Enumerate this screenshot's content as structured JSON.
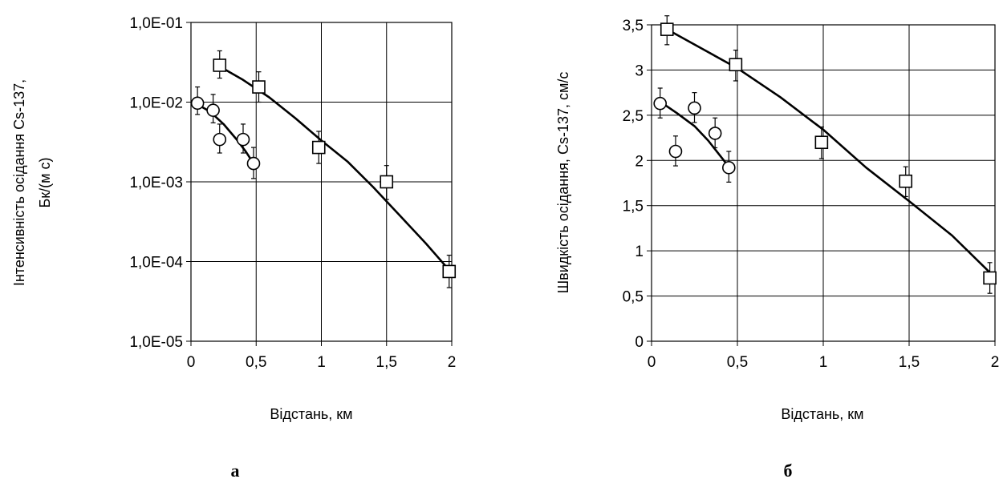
{
  "chart_data": [
    {
      "type": "scatter",
      "panel_label": "а",
      "xlabel": "Відстань, км",
      "ylabel_lines": [
        "Інтенсивність осідання Cs-137,",
        "Бк/(м с)"
      ],
      "yscale": "log",
      "xlim": [
        0,
        2
      ],
      "ylim": [
        1e-05,
        0.1
      ],
      "x_ticks": [
        0,
        0.5,
        1,
        1.5,
        2
      ],
      "x_tick_labels": [
        "0",
        "0,5",
        "1",
        "1,5",
        "2"
      ],
      "y_ticks": [
        1e-05,
        0.0001,
        0.001,
        0.01,
        0.1
      ],
      "y_tick_labels": [
        "1,0E-05",
        "1,0E-04",
        "1,0E-03",
        "1,0E-02",
        "1,0E-01"
      ],
      "grid": true,
      "series": [
        {
          "marker": "circle",
          "points": [
            {
              "x": 0.05,
              "y": 0.0097,
              "err": [
                0.007,
                0.0155
              ]
            },
            {
              "x": 0.17,
              "y": 0.0079,
              "err": [
                0.0055,
                0.0125
              ]
            },
            {
              "x": 0.22,
              "y": 0.0034,
              "err": [
                0.0023,
                0.0053
              ]
            },
            {
              "x": 0.4,
              "y": 0.0034,
              "err": [
                0.0023,
                0.0053
              ]
            },
            {
              "x": 0.48,
              "y": 0.0017,
              "err": [
                0.0011,
                0.0027
              ]
            }
          ],
          "fit": [
            {
              "x": 0.05,
              "y": 0.0094
            },
            {
              "x": 0.15,
              "y": 0.0075
            },
            {
              "x": 0.25,
              "y": 0.0053
            },
            {
              "x": 0.35,
              "y": 0.0034
            },
            {
              "x": 0.42,
              "y": 0.0024
            },
            {
              "x": 0.48,
              "y": 0.0017
            }
          ]
        },
        {
          "marker": "square",
          "points": [
            {
              "x": 0.22,
              "y": 0.029,
              "err": [
                0.02,
                0.044
              ]
            },
            {
              "x": 0.52,
              "y": 0.0155,
              "err": [
                0.01,
                0.024
              ]
            },
            {
              "x": 0.98,
              "y": 0.0027,
              "err": [
                0.0017,
                0.0043
              ]
            },
            {
              "x": 1.5,
              "y": 0.001,
              "err": [
                0.0006,
                0.0016
              ]
            },
            {
              "x": 1.98,
              "y": 7.5e-05,
              "err": [
                4.7e-05,
                0.00012
              ]
            }
          ],
          "fit": [
            {
              "x": 0.22,
              "y": 0.028
            },
            {
              "x": 0.4,
              "y": 0.019
            },
            {
              "x": 0.6,
              "y": 0.0115
            },
            {
              "x": 0.8,
              "y": 0.0063
            },
            {
              "x": 1.0,
              "y": 0.0033
            },
            {
              "x": 1.2,
              "y": 0.0018
            },
            {
              "x": 1.4,
              "y": 0.00085
            },
            {
              "x": 1.6,
              "y": 0.00038
            },
            {
              "x": 1.8,
              "y": 0.00017
            },
            {
              "x": 1.98,
              "y": 7.8e-05
            }
          ]
        }
      ]
    },
    {
      "type": "scatter",
      "panel_label": "б",
      "xlabel": "Відстань, км",
      "ylabel_lines": [
        "Швидкість осідання, Cs-137, см/с"
      ],
      "yscale": "linear",
      "xlim": [
        0,
        2
      ],
      "ylim": [
        0,
        3.5
      ],
      "x_ticks": [
        0,
        0.5,
        1,
        1.5,
        2
      ],
      "x_tick_labels": [
        "0",
        "0,5",
        "1",
        "1,5",
        "2"
      ],
      "y_ticks": [
        0,
        0.5,
        1,
        1.5,
        2,
        2.5,
        3,
        3.5
      ],
      "y_tick_labels": [
        "0",
        "0,5",
        "1",
        "1,5",
        "2",
        "2,5",
        "3",
        "3,5"
      ],
      "grid": true,
      "series": [
        {
          "marker": "circle",
          "points": [
            {
              "x": 0.05,
              "y": 2.63,
              "err": [
                2.47,
                2.8
              ]
            },
            {
              "x": 0.14,
              "y": 2.1,
              "err": [
                1.94,
                2.27
              ]
            },
            {
              "x": 0.25,
              "y": 2.58,
              "err": [
                2.42,
                2.75
              ]
            },
            {
              "x": 0.37,
              "y": 2.3,
              "err": [
                2.14,
                2.47
              ]
            },
            {
              "x": 0.45,
              "y": 1.92,
              "err": [
                1.76,
                2.1
              ]
            }
          ],
          "fit": [
            {
              "x": 0.05,
              "y": 2.65
            },
            {
              "x": 0.15,
              "y": 2.52
            },
            {
              "x": 0.25,
              "y": 2.38
            },
            {
              "x": 0.33,
              "y": 2.22
            },
            {
              "x": 0.4,
              "y": 2.05
            },
            {
              "x": 0.45,
              "y": 1.93
            }
          ]
        },
        {
          "marker": "square",
          "points": [
            {
              "x": 0.09,
              "y": 3.45,
              "err": [
                3.28,
                3.6
              ]
            },
            {
              "x": 0.49,
              "y": 3.06,
              "err": [
                2.88,
                3.22
              ]
            },
            {
              "x": 0.99,
              "y": 2.2,
              "err": [
                2.02,
                2.37
              ]
            },
            {
              "x": 1.48,
              "y": 1.77,
              "err": [
                1.6,
                1.93
              ]
            },
            {
              "x": 1.97,
              "y": 0.7,
              "err": [
                0.53,
                0.87
              ]
            }
          ],
          "fit": [
            {
              "x": 0.09,
              "y": 3.45
            },
            {
              "x": 0.3,
              "y": 3.23
            },
            {
              "x": 0.5,
              "y": 3.02
            },
            {
              "x": 0.75,
              "y": 2.7
            },
            {
              "x": 1.0,
              "y": 2.34
            },
            {
              "x": 1.25,
              "y": 1.92
            },
            {
              "x": 1.5,
              "y": 1.55
            },
            {
              "x": 1.75,
              "y": 1.17
            },
            {
              "x": 1.97,
              "y": 0.76
            }
          ]
        }
      ]
    }
  ]
}
